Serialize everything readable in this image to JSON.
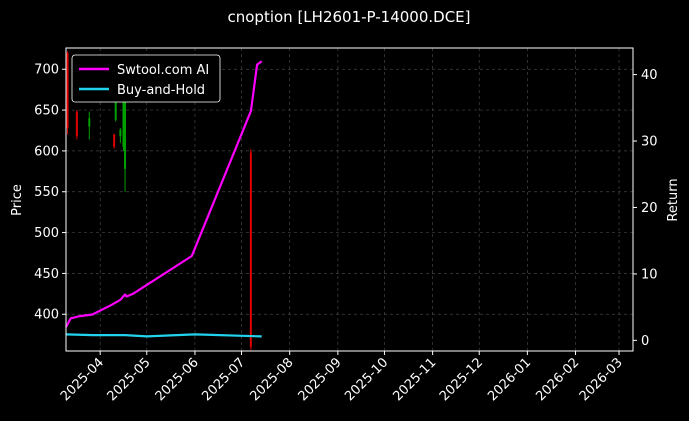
{
  "chart_data": {
    "type": "line",
    "title": "cnoption [LH2601-P-14000.DCE]",
    "ylabel_left": "Price",
    "ylabel_right": "Return",
    "xlim": [
      "2025-03-10",
      "2026-03-10"
    ],
    "ylim_left": [
      355,
      726
    ],
    "ylim_right": [
      -1.6,
      44
    ],
    "x_ticks": [
      "2025-04-01",
      "2025-05-01",
      "2025-06-01",
      "2025-07-01",
      "2025-08-01",
      "2025-09-01",
      "2025-10-01",
      "2025-11-01",
      "2025-12-01",
      "2026-01-01",
      "2026-02-01",
      "2026-03-01"
    ],
    "x_tick_labels": [
      "2025-04",
      "2025-05",
      "2025-06",
      "2025-07",
      "2025-08",
      "2025-09",
      "2025-10",
      "2025-11",
      "2025-12",
      "2026-01",
      "2026-02",
      "2026-03"
    ],
    "y_ticks_left": [
      400,
      450,
      500,
      550,
      600,
      650,
      700
    ],
    "y_ticks_right": [
      0,
      10,
      20,
      30,
      40
    ],
    "grid": true,
    "legend": "top-left",
    "colors": {
      "background": "#000000",
      "strategy": "#ff00ff",
      "benchmark": "#22d3ee",
      "candle_up": "#00a000",
      "candle_down": "#e00000",
      "grid": "#444444"
    },
    "series": [
      {
        "name": "Swtool.com AI",
        "axis": "right",
        "x": [
          "2025-03-10",
          "2025-03-13",
          "2025-03-18",
          "2025-03-27",
          "2025-04-08",
          "2025-04-14",
          "2025-04-17",
          "2025-04-18",
          "2025-04-22",
          "2025-05-30",
          "2025-07-07",
          "2025-07-09",
          "2025-07-11",
          "2025-07-14"
        ],
        "values": [
          2.0,
          3.3,
          3.6,
          3.9,
          5.3,
          6.1,
          6.9,
          6.6,
          7.0,
          12.7,
          34.5,
          38.0,
          41.5,
          42.0
        ]
      },
      {
        "name": "Buy-and-Hold",
        "axis": "right",
        "x": [
          "2025-03-10",
          "2025-03-27",
          "2025-04-17",
          "2025-05-01",
          "2025-06-01",
          "2025-07-14"
        ],
        "values": [
          0.9,
          0.8,
          0.8,
          0.6,
          0.9,
          0.6
        ]
      }
    ],
    "candles": [
      {
        "date": "2025-03-11",
        "open": 720,
        "close": 628,
        "high": 722,
        "low": 620
      },
      {
        "date": "2025-03-17",
        "open": 648,
        "close": 618,
        "high": 650,
        "low": 614
      },
      {
        "date": "2025-03-25",
        "open": 630,
        "close": 640,
        "high": 648,
        "low": 614
      },
      {
        "date": "2025-04-10",
        "open": 620,
        "close": 605,
        "high": 621,
        "low": 603
      },
      {
        "date": "2025-04-11",
        "open": 638,
        "close": 660,
        "high": 668,
        "low": 636
      },
      {
        "date": "2025-04-14",
        "open": 618,
        "close": 626,
        "high": 628,
        "low": 610
      },
      {
        "date": "2025-04-16",
        "open": 605,
        "close": 670,
        "high": 672,
        "low": 600
      },
      {
        "date": "2025-04-17",
        "open": 578,
        "close": 672,
        "high": 676,
        "low": 550
      },
      {
        "date": "2025-07-07",
        "open": 598,
        "close": 360,
        "high": 602,
        "low": 356
      }
    ]
  }
}
